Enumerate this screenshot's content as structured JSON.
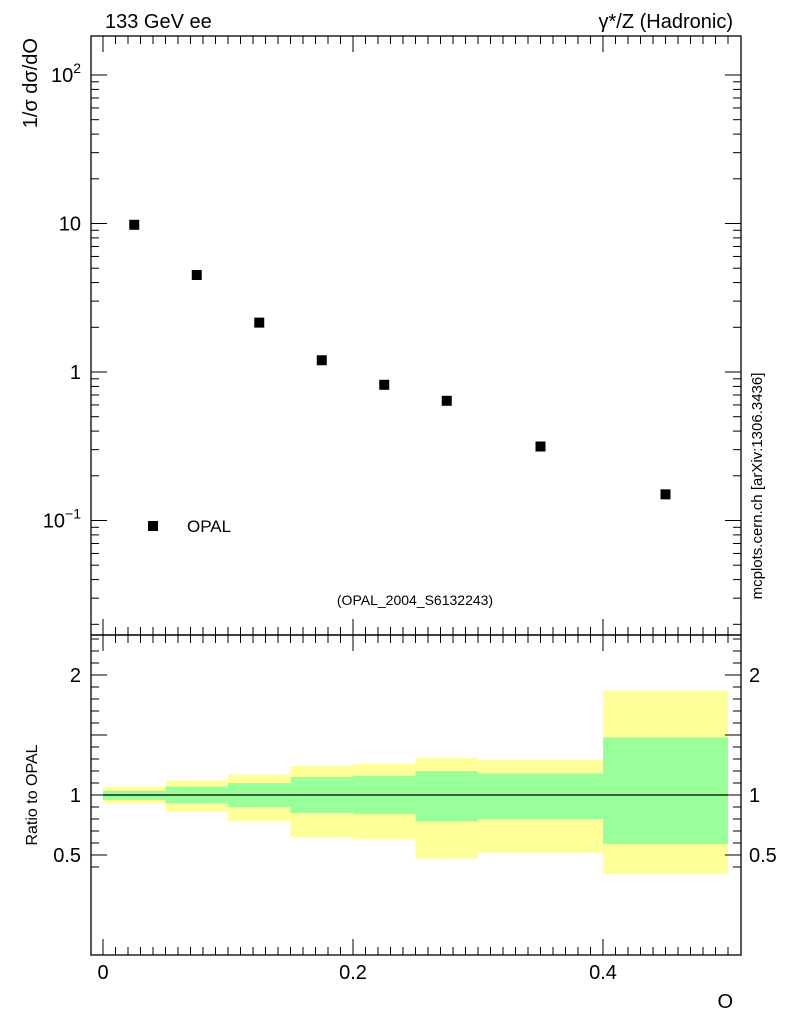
{
  "header": {
    "left_title": "133 GeV ee",
    "right_title": "γ*/Z (Hadronic)"
  },
  "side_label": "mcplots.cern.ch [arXiv:1306.3436]",
  "analysis_label": "(OPAL_2004_S6132243)",
  "colors": {
    "data_marker": "#000000",
    "band_outer": "#ffff99",
    "band_inner": "#99ff99",
    "axis": "#000000",
    "analysis_label": "#999999"
  },
  "chart_data": [
    {
      "type": "scatter",
      "panel": "main",
      "ylabel": "1/σ dσ/dO",
      "yscale": "log",
      "ylim": [
        0.02,
        200
      ],
      "xlim": [
        -0.01,
        0.51
      ],
      "y_tick_labels": [
        {
          "value": 0.1,
          "base": "10",
          "exp": "−1"
        },
        {
          "value": 1,
          "text": "1"
        },
        {
          "value": 10,
          "text": "10"
        },
        {
          "value": 100,
          "base": "10",
          "exp": "2"
        }
      ],
      "legend": {
        "position": "bottom-left",
        "entries": [
          "OPAL"
        ]
      },
      "series": [
        {
          "name": "OPAL",
          "points": [
            {
              "x": 0.025,
              "y": 9.8
            },
            {
              "x": 0.075,
              "y": 4.5
            },
            {
              "x": 0.125,
              "y": 2.15
            },
            {
              "x": 0.175,
              "y": 1.2
            },
            {
              "x": 0.225,
              "y": 0.82
            },
            {
              "x": 0.275,
              "y": 0.64
            },
            {
              "x": 0.35,
              "y": 0.315
            },
            {
              "x": 0.45,
              "y": 0.15
            }
          ]
        }
      ]
    },
    {
      "type": "area",
      "panel": "ratio",
      "ylabel": "Ratio to OPAL",
      "xlabel": "O",
      "ylim": [
        0.35,
        2.3
      ],
      "xlim": [
        -0.01,
        0.51
      ],
      "y_tick_labels": [
        "0.5",
        "1",
        "2"
      ],
      "x_tick_labels": [
        "0",
        "0.2",
        "0.4"
      ],
      "reference_line": 1,
      "bins": [
        {
          "x_lo": 0.0,
          "x_hi": 0.05,
          "outer": [
            0.93,
            1.07
          ],
          "inner": [
            0.96,
            1.035
          ]
        },
        {
          "x_lo": 0.05,
          "x_hi": 0.1,
          "outer": [
            0.86,
            1.12
          ],
          "inner": [
            0.93,
            1.07
          ]
        },
        {
          "x_lo": 0.1,
          "x_hi": 0.15,
          "outer": [
            0.78,
            1.17
          ],
          "inner": [
            0.9,
            1.1
          ]
        },
        {
          "x_lo": 0.15,
          "x_hi": 0.2,
          "outer": [
            0.65,
            1.24
          ],
          "inner": [
            0.85,
            1.15
          ]
        },
        {
          "x_lo": 0.2,
          "x_hi": 0.25,
          "outer": [
            0.63,
            1.26
          ],
          "inner": [
            0.84,
            1.16
          ]
        },
        {
          "x_lo": 0.25,
          "x_hi": 0.3,
          "outer": [
            0.47,
            1.31
          ],
          "inner": [
            0.78,
            1.2
          ]
        },
        {
          "x_lo": 0.3,
          "x_hi": 0.4,
          "outer": [
            0.52,
            1.29
          ],
          "inner": [
            0.8,
            1.18
          ]
        },
        {
          "x_lo": 0.4,
          "x_hi": 0.5,
          "outer": [
            0.34,
            1.87
          ],
          "inner": [
            0.59,
            1.48
          ]
        }
      ]
    }
  ]
}
